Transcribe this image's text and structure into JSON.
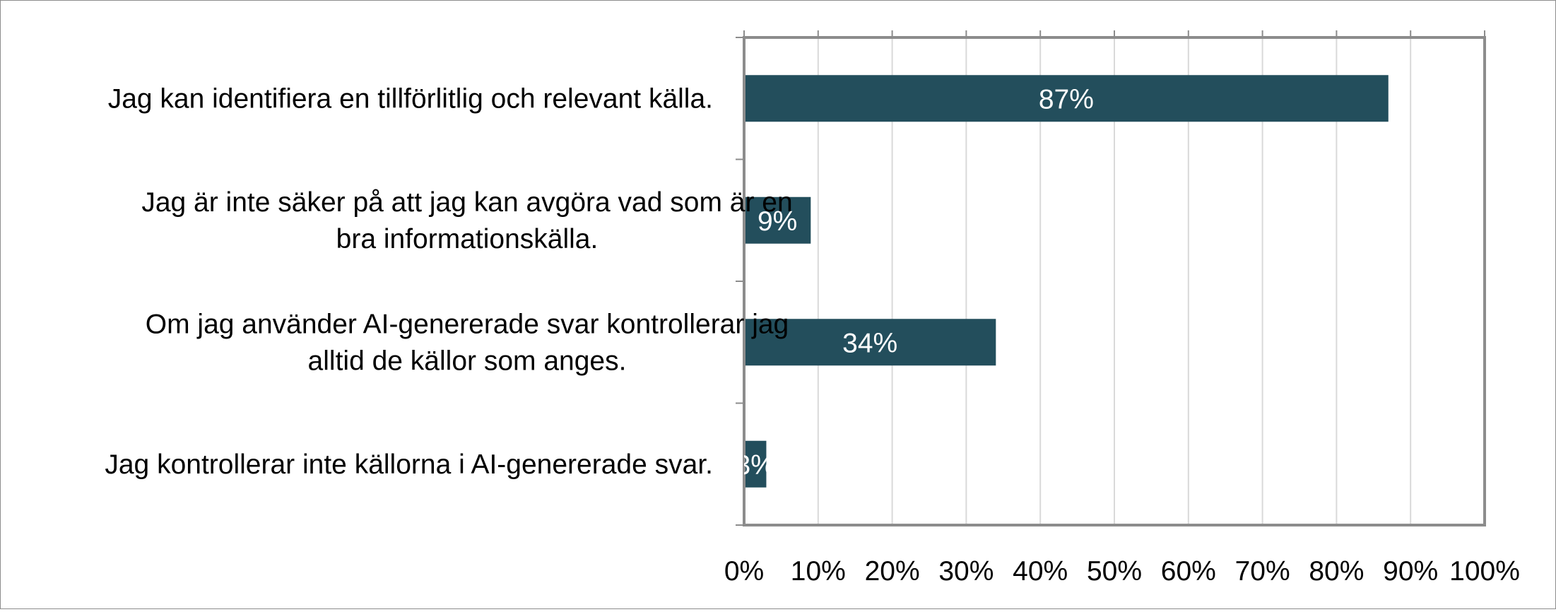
{
  "chart_data": {
    "type": "bar",
    "orientation": "horizontal",
    "title": "",
    "xlabel": "",
    "ylabel": "",
    "categories": [
      [
        "Jag kan identifiera en tillförlitlig och relevant källa."
      ],
      [
        "Jag är inte säker på att jag kan avgöra vad som är en",
        "bra informationskälla."
      ],
      [
        "Om jag använder AI-genererade svar kontrollerar jag",
        "alltid de källor som anges."
      ],
      [
        "Jag kontrollerar inte källorna i AI-genererade svar."
      ]
    ],
    "values": [
      87,
      9,
      34,
      3
    ],
    "value_labels": [
      "87%",
      "9%",
      "34%",
      "3%"
    ],
    "xlim": [
      0,
      100
    ],
    "xticks": [
      "0%",
      "10%",
      "20%",
      "30%",
      "40%",
      "50%",
      "60%",
      "70%",
      "80%",
      "90%",
      "100%"
    ],
    "grid": "vertical",
    "legend": "none",
    "colors": {
      "bar": "#234e5c",
      "grid": "#d9d9d9",
      "axis": "#8c8c8c",
      "bar_label": "#ffffff",
      "text": "#000000"
    }
  }
}
